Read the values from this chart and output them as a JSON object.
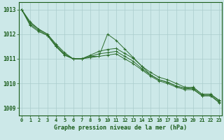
{
  "x": [
    0,
    1,
    2,
    3,
    4,
    5,
    6,
    7,
    8,
    9,
    10,
    11,
    12,
    13,
    14,
    15,
    16,
    17,
    18,
    19,
    20,
    21,
    22,
    23
  ],
  "line1": [
    1013.0,
    1012.5,
    1012.2,
    1012.0,
    1011.55,
    1011.2,
    1011.0,
    1011.0,
    1011.1,
    1011.1,
    1012.0,
    1011.75,
    1011.4,
    1011.05,
    1010.7,
    1010.35,
    1010.15,
    1010.05,
    1009.9,
    1009.8,
    1009.85,
    1009.55,
    1009.55,
    1009.3
  ],
  "line2": [
    1013.0,
    1012.4,
    1012.15,
    1011.95,
    1011.5,
    1011.15,
    1011.0,
    1011.0,
    1011.05,
    1011.1,
    1011.15,
    1011.2,
    1011.0,
    1010.8,
    1010.55,
    1010.3,
    1010.1,
    1010.0,
    1009.85,
    1009.75,
    1009.75,
    1009.5,
    1009.5,
    1009.25
  ],
  "line3": [
    1013.0,
    1012.35,
    1012.1,
    1011.95,
    1011.5,
    1011.15,
    1011.0,
    1011.0,
    1011.1,
    1011.2,
    1011.25,
    1011.3,
    1011.1,
    1010.9,
    1010.6,
    1010.35,
    1010.15,
    1010.05,
    1009.9,
    1009.8,
    1009.78,
    1009.5,
    1009.5,
    1009.22
  ],
  "line4": [
    1013.0,
    1012.45,
    1012.2,
    1012.0,
    1011.6,
    1011.25,
    1011.0,
    1011.0,
    1011.15,
    1011.3,
    1011.38,
    1011.42,
    1011.22,
    1011.02,
    1010.7,
    1010.45,
    1010.25,
    1010.15,
    1010.0,
    1009.85,
    1009.82,
    1009.57,
    1009.57,
    1009.32
  ],
  "yticks": [
    1009,
    1010,
    1011,
    1012,
    1013
  ],
  "xticks": [
    0,
    1,
    2,
    3,
    4,
    5,
    6,
    7,
    8,
    9,
    10,
    11,
    12,
    13,
    14,
    15,
    16,
    17,
    18,
    19,
    20,
    21,
    22,
    23
  ],
  "line_color": "#2d6e2d",
  "bg_color": "#cce8e8",
  "grid_color": "#aacccc",
  "tick_color": "#1a5c1a",
  "xlabel": "Graphe pression niveau de la mer (hPa)",
  "ylim": [
    1008.7,
    1013.3
  ],
  "xlim": [
    -0.3,
    23.3
  ]
}
